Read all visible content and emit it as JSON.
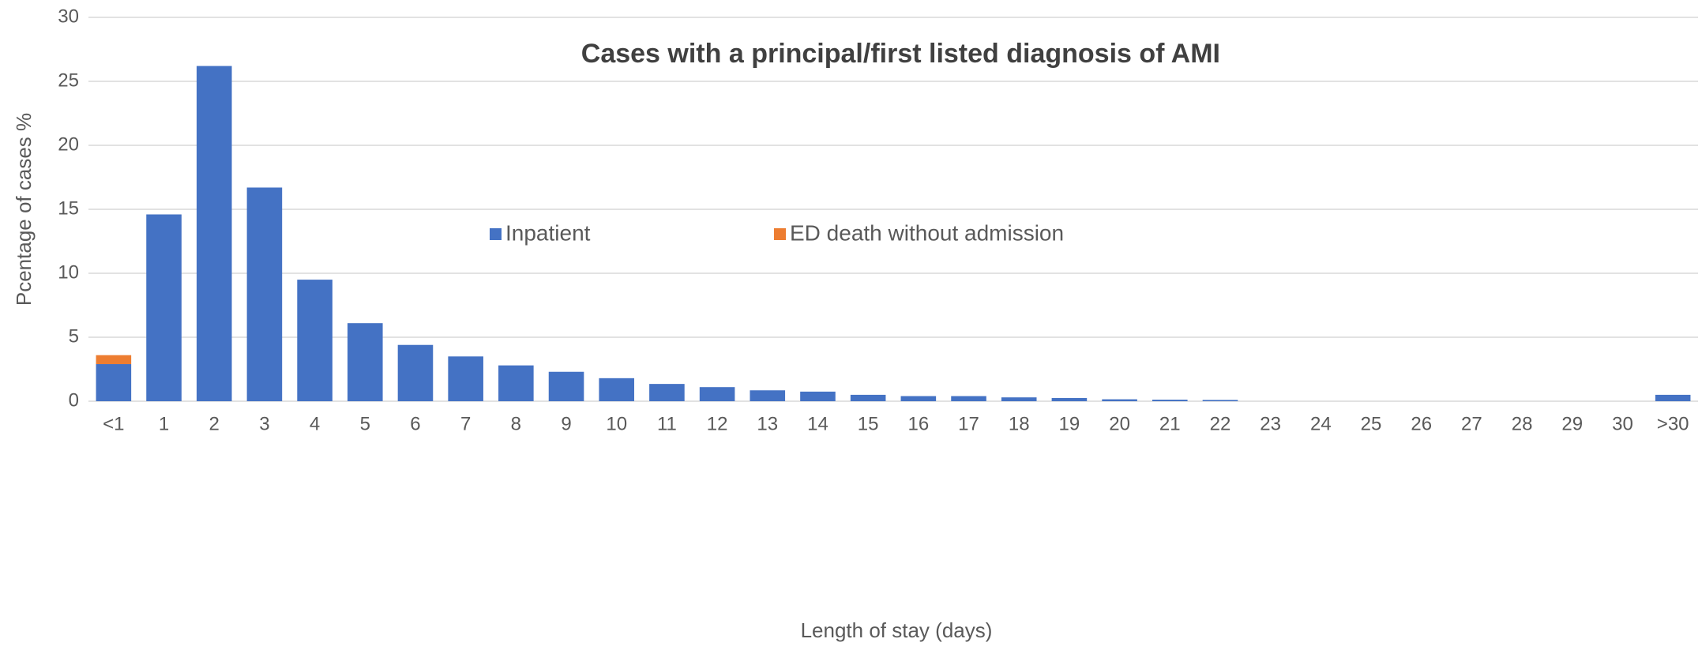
{
  "chart_data": {
    "type": "stacked_bar",
    "title": "Cases with a principal/first listed diagnosis of AMI",
    "xlabel": "Length of stay (days)",
    "ylabel": "Pcentage of cases %",
    "categories": [
      "<1",
      "1",
      "2",
      "3",
      "4",
      "5",
      "6",
      "7",
      "8",
      "9",
      "10",
      "11",
      "12",
      "13",
      "14",
      "15",
      "16",
      "17",
      "18",
      "19",
      "20",
      "21",
      "22",
      "23",
      "24",
      "25",
      "26",
      "27",
      "28",
      "29",
      "30",
      ">30"
    ],
    "series": [
      {
        "name": "Inpatient",
        "color": "#4472c4",
        "values": [
          2.9,
          14.6,
          26.2,
          16.7,
          9.5,
          6.1,
          4.4,
          3.5,
          2.8,
          2.3,
          1.8,
          1.35,
          1.1,
          0.85,
          0.75,
          0.5,
          0.4,
          0.4,
          0.3,
          0.25,
          0.15,
          0.12,
          0.1,
          0,
          0,
          0,
          0,
          0,
          0,
          0,
          0,
          0.5
        ]
      },
      {
        "name": "ED death without admission",
        "color": "#ed7d31",
        "values": [
          0.7,
          0,
          0,
          0,
          0,
          0,
          0,
          0,
          0,
          0,
          0,
          0,
          0,
          0,
          0,
          0,
          0,
          0,
          0,
          0,
          0,
          0,
          0,
          0,
          0,
          0,
          0,
          0,
          0,
          0,
          0,
          0
        ]
      }
    ],
    "ylim": [
      0,
      30
    ],
    "yticks": [
      0,
      5,
      10,
      15,
      20,
      25,
      30
    ],
    "grid": true,
    "legend": "center"
  }
}
